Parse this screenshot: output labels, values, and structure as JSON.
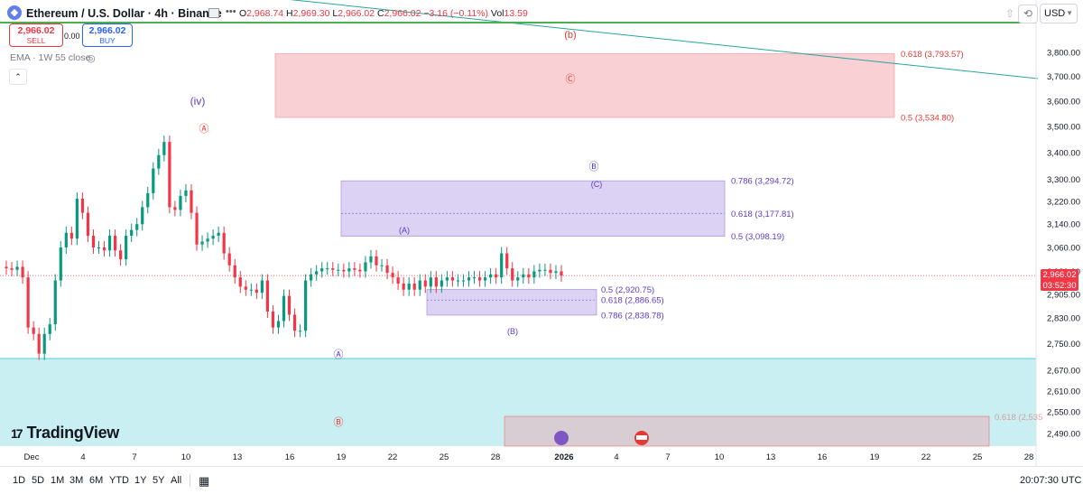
{
  "header": {
    "symbol_icon": "ethereum-icon",
    "title": "Ethereum / U.S. Dollar · 4h · Binance",
    "ohlc": {
      "o_label": "O",
      "o_value": "2,968.74",
      "h_label": "H",
      "h_value": "2,969.30",
      "l_label": "L",
      "l_value": "2,966.02",
      "c_label": "C",
      "c_value": "2,966.02",
      "change": "−3.16 (−0.11%)",
      "vol_label": "Vol",
      "vol_value": "13.59"
    },
    "currency": "USD"
  },
  "trade": {
    "sell_price": "2,966.02",
    "sell_label": "SELL",
    "spread": "0.00",
    "buy_price": "2,966.02",
    "buy_label": "BUY"
  },
  "indicator": {
    "label": "EMA · 1W 55 close"
  },
  "brand": {
    "name": "TradingView"
  },
  "current_price": {
    "price": "2,966.02",
    "countdown": "03:52:30"
  },
  "bottom": {
    "ranges": [
      "1D",
      "5D",
      "1M",
      "3M",
      "6M",
      "YTD",
      "1Y",
      "5Y",
      "All"
    ],
    "time": "20:07:30 UTC"
  },
  "colors": {
    "up": "#089981",
    "down": "#f23645",
    "red_zone": "#f9d0d3",
    "purple_zone": "#dcd2f3",
    "cyan_zone": "#c9eff3",
    "gray_zone": "#d8cdd3",
    "wave_purple": "#5b3cc4",
    "wave_red": "#e53935"
  },
  "chart_data": {
    "type": "candlestick",
    "y_axis": {
      "ticks": [
        "3,800.00",
        "3,700.00",
        "3,600.00",
        "3,500.00",
        "3,400.00",
        "3,300.00",
        "3,220.00",
        "3,140.00",
        "3,060.00",
        "2,980.00",
        "2,905.00",
        "2,830.00",
        "2,750.00",
        "2,670.00",
        "2,610.00",
        "2,550.00",
        "2,490.00"
      ],
      "scale": "log",
      "range": [
        2455,
        4000
      ]
    },
    "x_axis": {
      "ticks": [
        "Dec",
        "4",
        "7",
        "10",
        "13",
        "16",
        "19",
        "22",
        "25",
        "28",
        "2026",
        "4",
        "7",
        "10",
        "13",
        "16",
        "19",
        "22",
        "25",
        "28"
      ],
      "range": [
        "2025-12-01",
        "2026-01-29"
      ]
    },
    "closes": [
      2990,
      2985,
      2995,
      2960,
      2800,
      2780,
      2720,
      2780,
      2810,
      2950,
      3060,
      3110,
      3090,
      3230,
      3180,
      3100,
      3060,
      3060,
      3050,
      3100,
      3050,
      3020,
      3100,
      3120,
      3140,
      3200,
      3250,
      3340,
      3390,
      3440,
      3200,
      3190,
      3240,
      3260,
      3180,
      3070,
      3080,
      3090,
      3100,
      3110,
      3040,
      3000,
      2960,
      2930,
      2920,
      2920,
      2910,
      2950,
      2850,
      2800,
      2820,
      2900,
      2840,
      2790,
      2790,
      2950,
      2970,
      2980,
      2990,
      2990,
      2985,
      2985,
      2980,
      2990,
      2985,
      2980,
      3010,
      3030,
      3000,
      3000,
      2975,
      2960,
      2940,
      2920,
      2940,
      2920,
      2950,
      2930,
      2960,
      2930,
      2950,
      2960,
      2950,
      2950,
      2950,
      2960,
      2960,
      2950,
      2960,
      2970,
      2960,
      3040,
      2990,
      2950,
      2960,
      2970,
      2960,
      2980,
      2985,
      2985,
      2975,
      2980,
      2966
    ],
    "annotations": [
      {
        "label": "(iv)",
        "color": "purple"
      },
      {
        "label": "Ⓐ",
        "color": "red"
      },
      {
        "label": "(b)",
        "color": "red"
      },
      {
        "label": "Ⓒ",
        "color": "red"
      },
      {
        "label": "Ⓑ",
        "color": "purple"
      },
      {
        "label": "(C)",
        "color": "purple"
      },
      {
        "label": "(A)",
        "color": "purple"
      },
      {
        "label": "(B)",
        "color": "purple"
      },
      {
        "label": "Ⓐ",
        "color": "purple"
      },
      {
        "label": "Ⓑ",
        "color": "red"
      }
    ],
    "fib_levels": [
      {
        "label": "0.618 (3,793.57)",
        "value": 3793.57,
        "color": "red"
      },
      {
        "label": "0.5 (3,534.80)",
        "value": 3534.8,
        "color": "red"
      },
      {
        "label": "0.786 (3,294.72)",
        "value": 3294.72,
        "color": "purple"
      },
      {
        "label": "0.618 (3,177.81)",
        "value": 3177.81,
        "color": "purple"
      },
      {
        "label": "0.5 (3,098.19)",
        "value": 3098.19,
        "color": "purple"
      },
      {
        "label": "0.5 (2,920.75)",
        "value": 2920.75,
        "color": "purple"
      },
      {
        "label": "0.618 (2,886.65)",
        "value": 2886.65,
        "color": "purple"
      },
      {
        "label": "0.786 (2,838.78)",
        "value": 2838.78,
        "color": "purple"
      },
      {
        "label": "0.618 (2,535",
        "value": 2535,
        "color": "red"
      }
    ],
    "grid": false
  }
}
